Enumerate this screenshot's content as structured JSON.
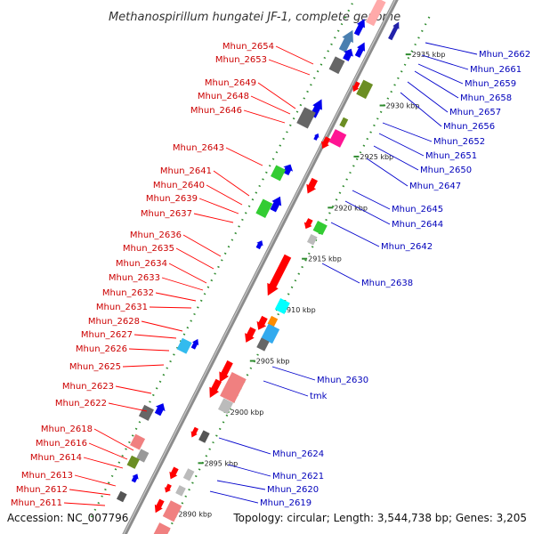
{
  "title": "Methanospirillum hungatei JF-1, complete genome",
  "footer": {
    "accession": "Accession: NC_007796",
    "topology": "Topology: circular; Length: 3,544,738 bp; Genes: 3,205"
  },
  "colors": {
    "forward": "#ff0000",
    "reverse": "#0000ee",
    "backbone": "#888888",
    "label_left": "#cc0000",
    "label_right": "#0000bb",
    "tick": "#2e8b2e"
  },
  "scale_ticks": [
    {
      "label": "2890 kbp",
      "kb": 2890
    },
    {
      "label": "2895 kbp",
      "kb": 2895
    },
    {
      "label": "2900 kbp",
      "kb": 2900
    },
    {
      "label": "2905 kbp",
      "kb": 2905
    },
    {
      "label": "2910 kbp",
      "kb": 2910
    },
    {
      "label": "2915 kbp",
      "kb": 2915
    },
    {
      "label": "2920 kbp",
      "kb": 2920
    },
    {
      "label": "2925 kbp",
      "kb": 2925
    },
    {
      "label": "2930 kbp",
      "kb": 2930
    },
    {
      "label": "2935 kbp",
      "kb": 2935
    }
  ],
  "genes_left": [
    "Mhun_2654",
    "Mhun_2653",
    "Mhun_2649",
    "Mhun_2648",
    "Mhun_2646",
    "Mhun_2643",
    "Mhun_2641",
    "Mhun_2640",
    "Mhun_2639",
    "Mhun_2637",
    "Mhun_2636",
    "Mhun_2635",
    "Mhun_2634",
    "Mhun_2633",
    "Mhun_2632",
    "Mhun_2631",
    "Mhun_2628",
    "Mhun_2627",
    "Mhun_2626",
    "Mhun_2625",
    "Mhun_2623",
    "Mhun_2622",
    "Mhun_2618",
    "Mhun_2616",
    "Mhun_2614",
    "Mhun_2613",
    "Mhun_2612",
    "Mhun_2611"
  ],
  "genes_right": [
    "Mhun_2662",
    "Mhun_2661",
    "Mhun_2659",
    "Mhun_2658",
    "Mhun_2657",
    "Mhun_2656",
    "Mhun_2652",
    "Mhun_2651",
    "Mhun_2650",
    "Mhun_2647",
    "Mhun_2645",
    "Mhun_2644",
    "Mhun_2642",
    "Mhun_2638",
    "Mhun_2630",
    "tmk",
    "Mhun_2624",
    "Mhun_2621",
    "Mhun_2620",
    "Mhun_2619"
  ]
}
